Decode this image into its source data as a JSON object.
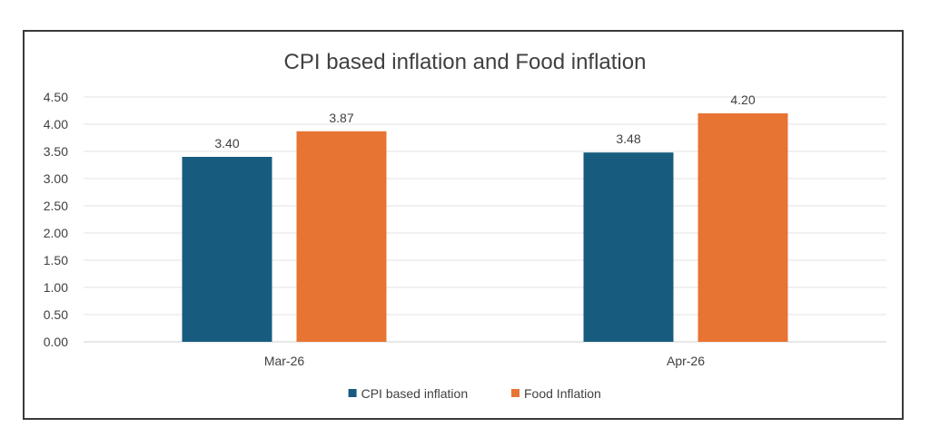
{
  "chart_data": {
    "type": "bar",
    "title": "CPI based inflation and Food inflation",
    "categories": [
      "Mar-26",
      "Apr-26"
    ],
    "series": [
      {
        "name": "CPI based inflation",
        "values": [
          3.4,
          3.48
        ],
        "labels": [
          "3.40",
          "3.48"
        ],
        "color": "#175c7f"
      },
      {
        "name": "Food Inflation",
        "values": [
          3.87,
          4.2
        ],
        "labels": [
          "3.87",
          "4.20"
        ],
        "color": "#e87433"
      }
    ],
    "ylim": [
      0,
      4.5
    ],
    "yticks": [
      "0.00",
      "0.50",
      "1.00",
      "1.50",
      "2.00",
      "2.50",
      "3.00",
      "3.50",
      "4.00",
      "4.50"
    ],
    "grid": true,
    "legend": "bottom"
  }
}
